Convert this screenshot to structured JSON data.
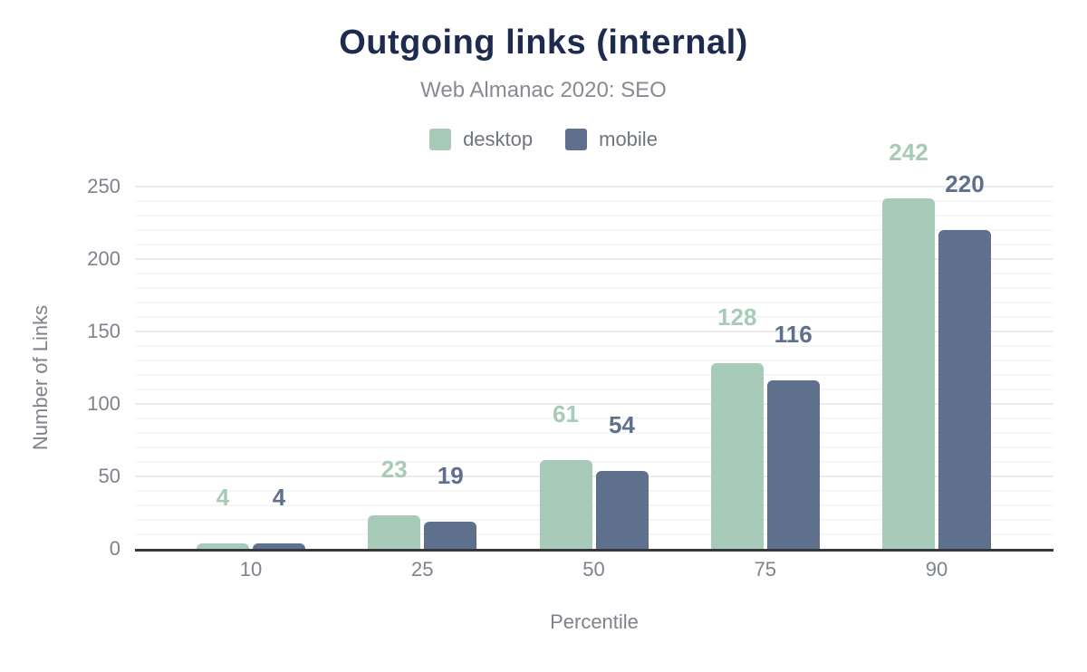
{
  "chart_data": {
    "type": "bar",
    "title": "Outgoing links (internal)",
    "subtitle": "Web Almanac 2020: SEO",
    "categories": [
      "10",
      "25",
      "50",
      "75",
      "90"
    ],
    "series": [
      {
        "name": "desktop",
        "color": "#a7cab9",
        "values": [
          4,
          23,
          61,
          128,
          242
        ]
      },
      {
        "name": "mobile",
        "color": "#5e708c",
        "values": [
          4,
          19,
          54,
          116,
          220
        ]
      }
    ],
    "xlabel": "Percentile",
    "ylabel": "Number of Links",
    "ylim": [
      0,
      250
    ],
    "yticks": [
      0,
      50,
      100,
      150,
      200,
      250
    ],
    "grid": {
      "major_every": 50,
      "minor_every": 10,
      "major_color": "#ececec",
      "minor_color": "#f6f6f6"
    },
    "axis_line_color": "#35383c",
    "title_color": "#1d2b4e",
    "subtitle_color": "#878b91",
    "tick_color": "#7e838b",
    "legend_position": "top",
    "data_labels": true
  }
}
